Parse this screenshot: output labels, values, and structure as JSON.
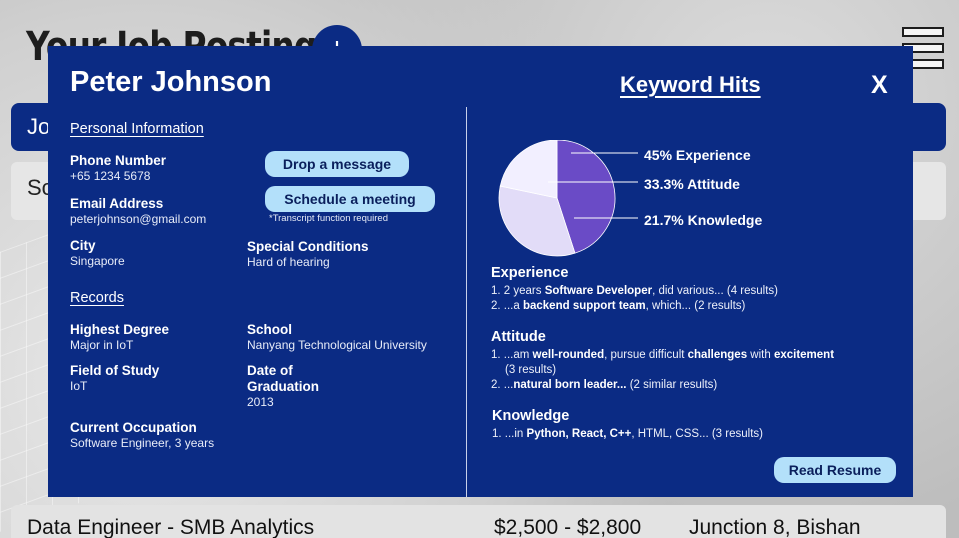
{
  "background": {
    "page_title": "Your Job Postings",
    "add_label": "+",
    "tab_text": "Jo",
    "search_text": "Sc",
    "job_row": {
      "title": "Data Engineer - SMB Analytics",
      "pay": "$2,500 - $2,800",
      "location": "Junction 8, Bishan"
    }
  },
  "modal": {
    "name": "Peter Johnson",
    "keyword_title": "Keyword Hits",
    "close_label": "X",
    "personal": {
      "heading": "Personal Information",
      "phone_label": "Phone Number",
      "phone": "+65 1234 5678",
      "email_label": "Email Address",
      "email": "peterjohnson@gmail.com",
      "city_label": "City",
      "city": "Singapore",
      "conditions_label": "Special Conditions",
      "conditions": "Hard of hearing"
    },
    "actions": {
      "message": "Drop a message",
      "meeting": "Schedule a meeting",
      "note": "*Transcript function required",
      "resume": "Read Resume"
    },
    "records": {
      "heading": "Records",
      "degree_label": "Highest Degree",
      "degree": "Major in IoT",
      "school_label": "School",
      "school": "Nanyang Technological University",
      "field_label": "Field of Study",
      "field": "IoT",
      "grad_label_1": "Date of",
      "grad_label_2": "Graduation",
      "grad": "2013",
      "occupation_label": "Current Occupation",
      "occupation": "Software Engineer, 3 years"
    },
    "keywords": {
      "experience": {
        "heading": "Experience",
        "items": [
          [
            "1. 2 years ",
            "Software Developer",
            ", did various... (4 results)"
          ],
          [
            "2. ...a ",
            "backend support team",
            ", which... (2 results)"
          ]
        ]
      },
      "attitude": {
        "heading": "Attitude",
        "item1_a": "1. ...am ",
        "item1_b": "well-rounded",
        "item1_c": ", pursue difficult ",
        "item1_d": "challenges",
        "item1_e": " with ",
        "item1_f": "excitement",
        "item1_g": "(3 results)",
        "item2_a": "2. ...",
        "item2_b": "natural born leader...",
        "item2_c": " (2 similar results)"
      },
      "knowledge": {
        "heading": "Knowledge",
        "item1_a": "1. ...in ",
        "item1_b": "Python, React, C++",
        "item1_c": ", HTML, CSS... (3 results)"
      }
    }
  },
  "chart_data": {
    "type": "pie",
    "title": "",
    "series": [
      {
        "label": "45% Experience",
        "value": 45,
        "color": "#6a4bc6"
      },
      {
        "label": "33.3% Attitude",
        "value": 33.3,
        "color": "#e2dcf8"
      },
      {
        "label": "21.7% Knowledge",
        "value": 21.7,
        "color": "#f2efff"
      }
    ],
    "legend": "right"
  }
}
